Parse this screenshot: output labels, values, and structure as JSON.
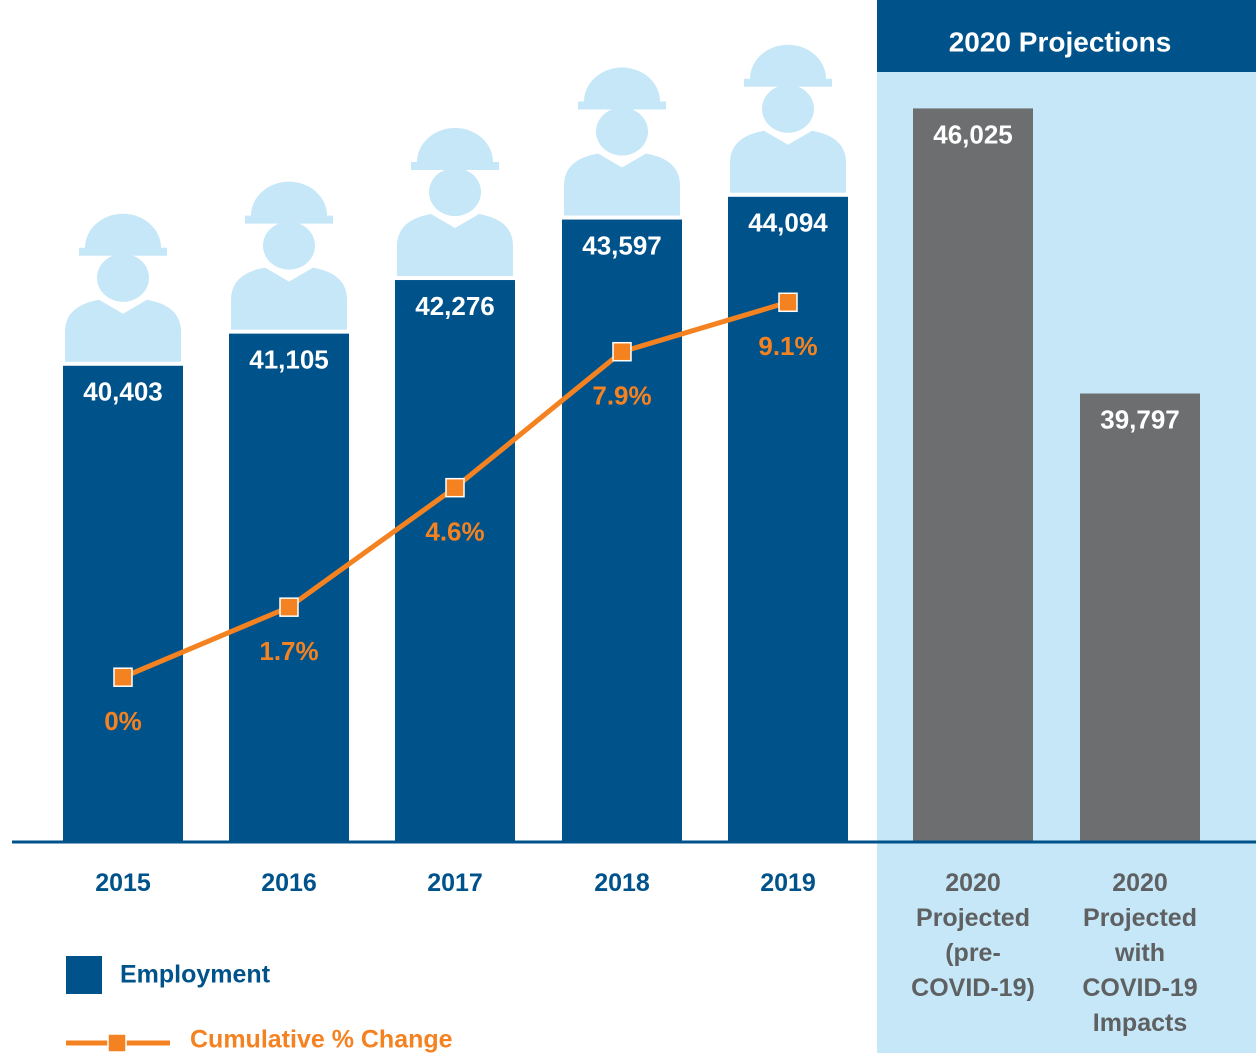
{
  "chart_data": {
    "type": "bar",
    "header": "2020 Projections",
    "categories": [
      "2015",
      "2016",
      "2017",
      "2018",
      "2019",
      "2020 Projected (pre-COVID-19)",
      "2020 Projected with COVID-19 Impacts"
    ],
    "ylim": [
      30000,
      48000
    ],
    "y2lim": [
      -4,
      16
    ],
    "series": [
      {
        "name": "Employment",
        "type": "bar",
        "color": "#00528a",
        "projected_color": "#6d6e70",
        "values": [
          40403,
          41105,
          42276,
          43597,
          44094,
          46025,
          39797
        ],
        "value_labels": [
          "40,403",
          "41,105",
          "42,276",
          "43,597",
          "44,094",
          "46,025",
          "39,797"
        ]
      },
      {
        "name": "Cumulative % Change",
        "type": "line",
        "axis": "y2",
        "color": "#f58220",
        "values": [
          0,
          1.7,
          4.6,
          7.9,
          9.1,
          null,
          null
        ],
        "value_labels": [
          "0%",
          "1.7%",
          "4.6%",
          "7.9%",
          "9.1%",
          null,
          null
        ]
      }
    ]
  }
}
